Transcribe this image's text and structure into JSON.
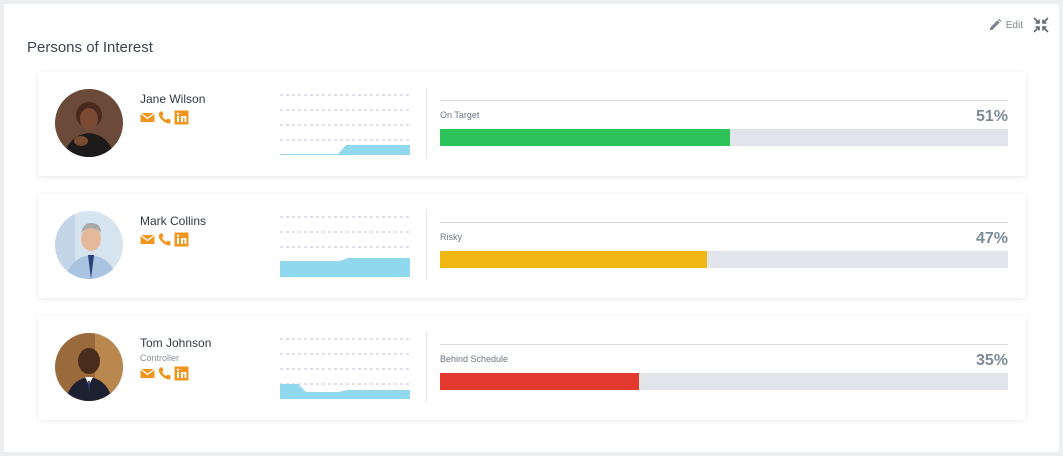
{
  "panel": {
    "title": "Persons of Interest",
    "edit_label": "Edit",
    "edit_icon": "pencil-icon",
    "collapse_icon": "collapse-icon"
  },
  "colors": {
    "contact_orange": "#f0961e",
    "sparkline_fill": "#8fd8ee",
    "on_target": "#2ec25a",
    "risky": "#f0b614",
    "behind": "#e33a30",
    "track": "#e1e4e8"
  },
  "persons": [
    {
      "name": "Jane Wilson",
      "role": "",
      "status": "On Target",
      "percent_label": "51%",
      "percent": 51,
      "color": "#2ec25a",
      "icons": [
        "email-icon",
        "phone-icon",
        "linkedin-icon"
      ]
    },
    {
      "name": "Mark Collins",
      "role": "",
      "status": "Risky",
      "percent_label": "47%",
      "percent": 47,
      "color": "#f0b614",
      "icons": [
        "email-icon",
        "phone-icon",
        "linkedin-icon"
      ]
    },
    {
      "name": "Tom Johnson",
      "role": "Controller",
      "status": "Behind Schedule",
      "percent_label": "35%",
      "percent": 35,
      "color": "#e33a30",
      "icons": [
        "email-icon",
        "phone-icon",
        "linkedin-icon"
      ]
    }
  ]
}
